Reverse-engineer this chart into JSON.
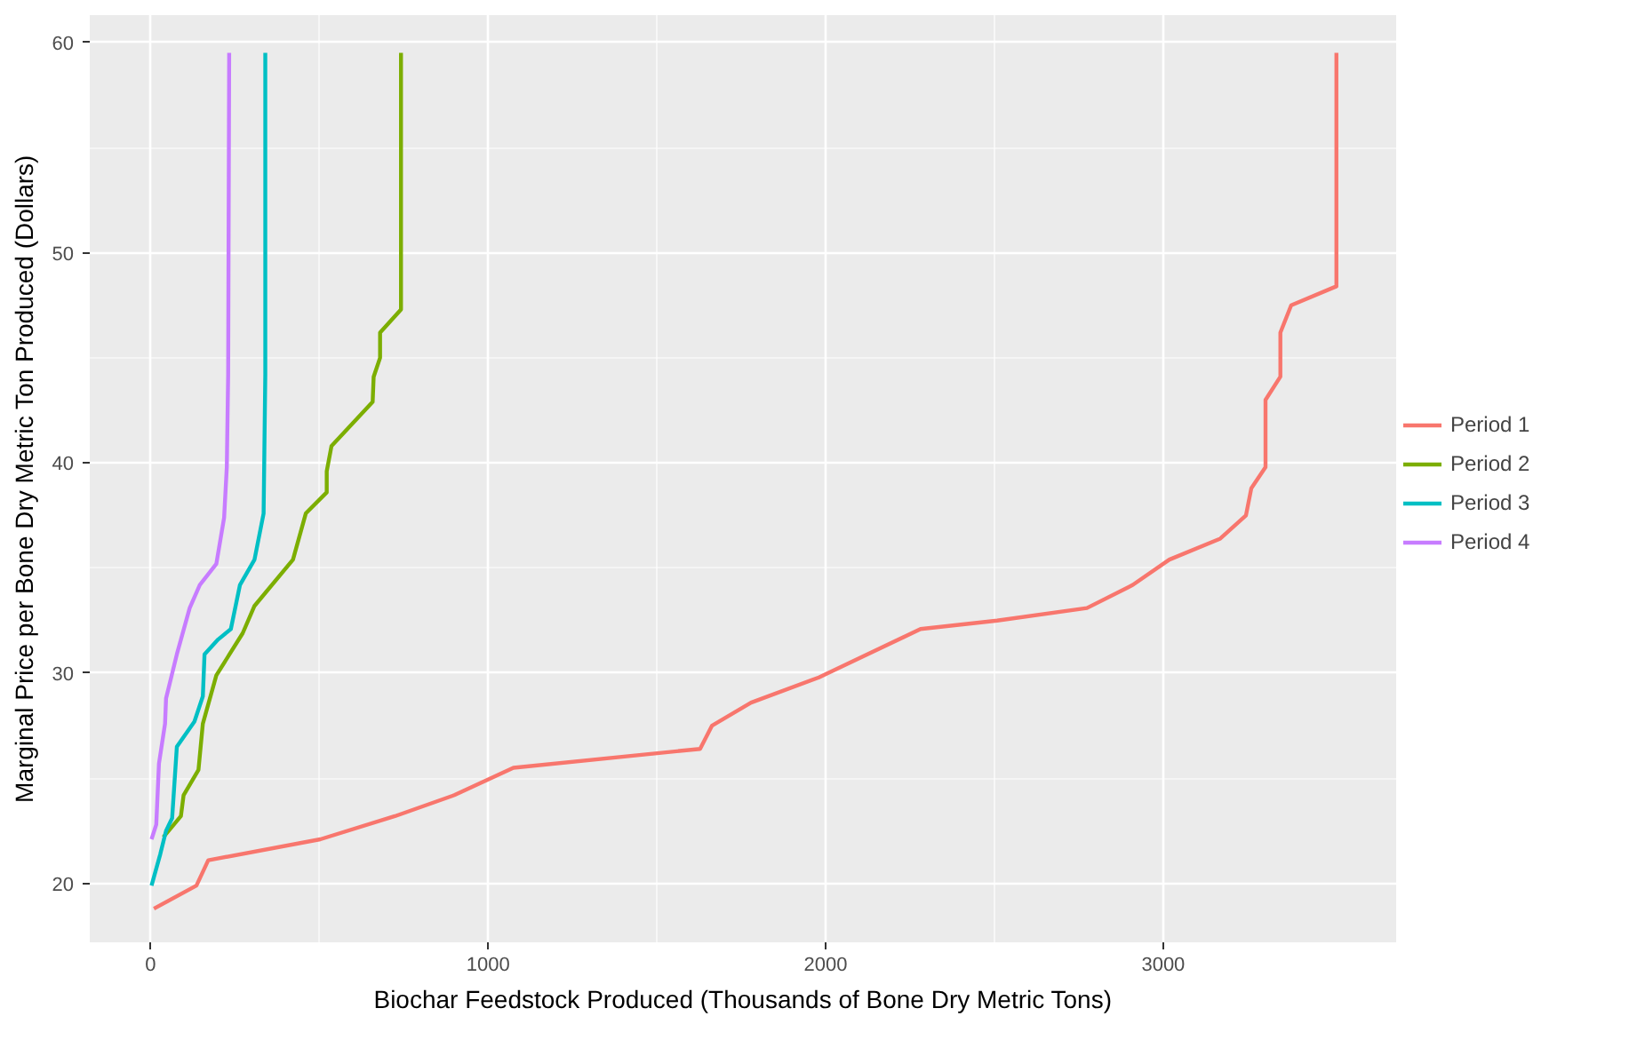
{
  "chart_data": {
    "type": "line",
    "xlabel": "Biochar Feedstock Produced (Thousands of Bone Dry Metric Tons)",
    "ylabel": "Marginal Price per Bone Dry Metric Ton Produced (Dollars)",
    "xlim": [
      -180,
      3690
    ],
    "ylim": [
      17.2,
      61.3
    ],
    "xticks": [
      0,
      1000,
      2000,
      3000
    ],
    "yticks": [
      20,
      30,
      40,
      50,
      60
    ],
    "grid": true,
    "legend": "right",
    "line_style": "solid",
    "series": [
      {
        "name": "Period 1",
        "color": "#f8766d",
        "x": [
          10,
          136,
          171,
          503,
          724,
          900,
          1075,
          1628,
          1663,
          1779,
          1980,
          2281,
          2508,
          2774,
          2910,
          3018,
          3169,
          3245,
          3261,
          3303,
          3303,
          3347,
          3347,
          3379,
          3513,
          3513
        ],
        "values": [
          18.8,
          19.9,
          21.1,
          22.1,
          23.2,
          24.2,
          25.5,
          26.4,
          27.5,
          28.6,
          29.8,
          32.1,
          32.5,
          33.1,
          34.2,
          35.4,
          36.4,
          37.5,
          38.8,
          39.8,
          43.0,
          44.1,
          46.2,
          47.5,
          48.4,
          59.5
        ]
      },
      {
        "name": "Period 2",
        "color": "#7cae00",
        "x": [
          38,
          90,
          98,
          142,
          155,
          195,
          273,
          308,
          422,
          460,
          522,
          522,
          536,
          658,
          661,
          680,
          680,
          742,
          742
        ],
        "values": [
          22.2,
          23.2,
          24.2,
          25.4,
          27.6,
          29.9,
          31.9,
          33.2,
          35.4,
          37.6,
          38.6,
          39.6,
          40.8,
          42.9,
          44.1,
          45.0,
          46.2,
          47.3,
          59.5
        ]
      },
      {
        "name": "Period 3",
        "color": "#00bfc4",
        "x": [
          3,
          29,
          46,
          64,
          78,
          130,
          155,
          160,
          200,
          238,
          265,
          308,
          335,
          340,
          340
        ],
        "values": [
          19.9,
          21.4,
          22.5,
          23.1,
          26.5,
          27.7,
          28.9,
          30.9,
          31.6,
          32.1,
          34.2,
          35.4,
          37.6,
          44.2,
          59.5
        ]
      },
      {
        "name": "Period 4",
        "color": "#c77cff",
        "x": [
          3,
          17,
          25,
          43,
          46,
          78,
          116,
          146,
          195,
          218,
          226,
          230,
          233
        ],
        "values": [
          22.1,
          22.8,
          25.7,
          27.6,
          28.8,
          30.9,
          33.1,
          34.2,
          35.2,
          37.4,
          39.8,
          44.2,
          59.5
        ]
      }
    ]
  }
}
